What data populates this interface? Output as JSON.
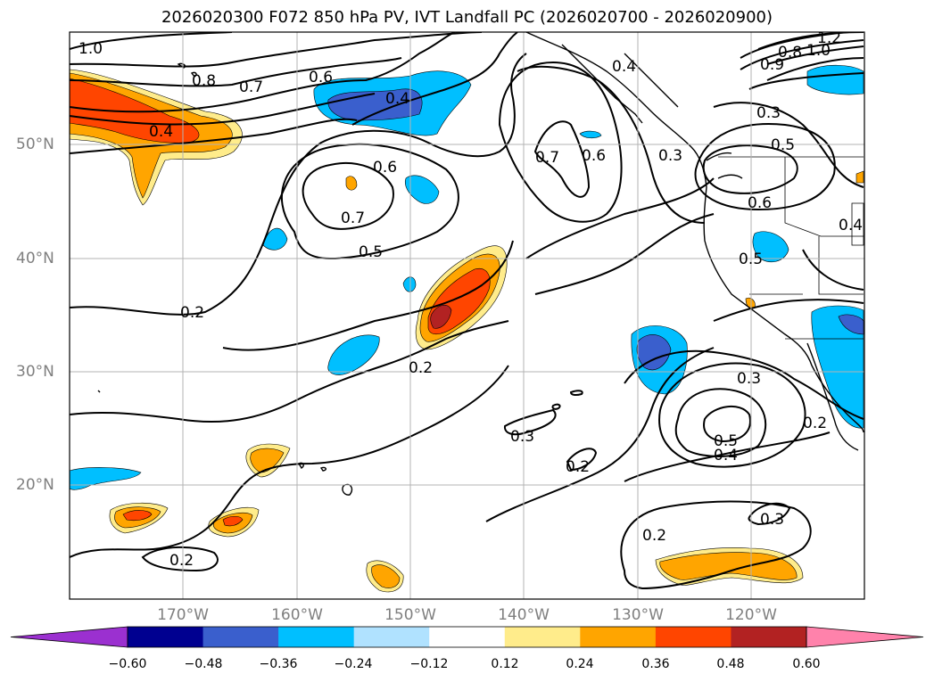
{
  "title": "2026020300 F072 850 hPa PV, IVT Landfall PC (2026020700 - 2026020900)",
  "map": {
    "lon_labels": [
      "170°W",
      "160°W",
      "150°W",
      "140°W",
      "130°W",
      "120°W"
    ],
    "lat_labels": [
      "50°N",
      "40°N",
      "30°N",
      "20°N"
    ],
    "contour_labels": [
      "1.0",
      "0.8",
      "0.7",
      "0.6",
      "0.4",
      "0.4",
      "0.6",
      "0.7",
      "0.5",
      "0.2",
      "0.2",
      "0.7",
      "0.6",
      "0.4",
      "0.9",
      "0.8",
      "1.0",
      "1.2",
      "0.3",
      "0.5",
      "0.6",
      "0.4",
      "0.5",
      "0.3",
      "0.3",
      "0.5",
      "0.4",
      "0.2",
      "0.2",
      "0.3",
      "0.2",
      "0.3",
      "0.2"
    ]
  },
  "colorbar": {
    "ticks": [
      "−0.60",
      "−0.48",
      "−0.36",
      "−0.24",
      "−0.12",
      "0.12",
      "0.24",
      "0.36",
      "0.48",
      "0.60"
    ],
    "colors": [
      "#9b30d0",
      "#000090",
      "#3a5fcd",
      "#00bfff",
      "#b0e2ff",
      "#ffffff",
      "#ffec8b",
      "#ffa500",
      "#ff4500",
      "#b22222",
      "#ff82ab"
    ]
  }
}
